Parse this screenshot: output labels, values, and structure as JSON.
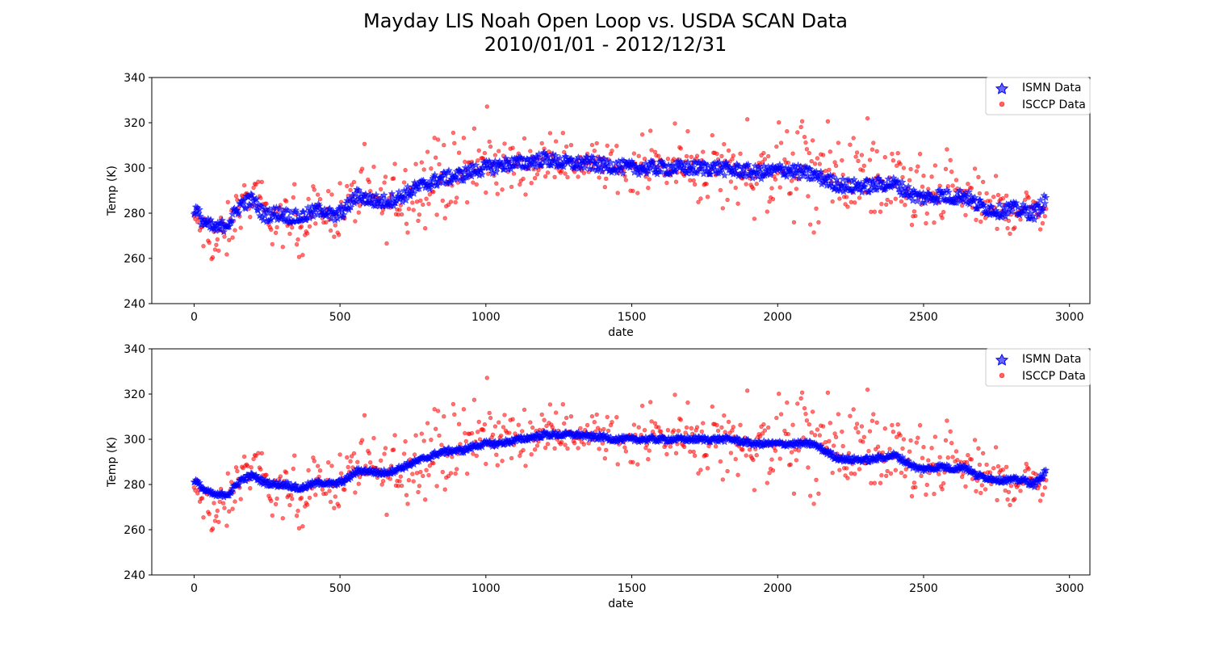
{
  "figure": {
    "title_line1": "Mayday LIS Noah Open Loop vs. USDA SCAN Data",
    "title_line2": "2010/01/01 - 2012/12/31"
  },
  "colors": {
    "ismn": "#0000ff",
    "isccp": "#ff0000"
  },
  "chart_data": [
    {
      "type": "scatter",
      "title": "",
      "xlabel": "date",
      "ylabel": "Temp (K)",
      "xlim": [
        -145,
        3070
      ],
      "ylim": [
        240,
        340
      ],
      "xticks": [
        0,
        500,
        1000,
        1500,
        2000,
        2500,
        3000
      ],
      "yticks": [
        240,
        260,
        280,
        300,
        320,
        340
      ],
      "grid": false,
      "legend": {
        "position": "top-right",
        "entries": [
          "ISMN Data",
          "ISCCP Data"
        ]
      },
      "series": [
        {
          "name": "ISMN Data",
          "marker": "star",
          "color": "#0000ff",
          "x": [
            0,
            40,
            80,
            120,
            160,
            200,
            240,
            280,
            320,
            360,
            400,
            440,
            480,
            520,
            560,
            600,
            640,
            680,
            720,
            760,
            800,
            840,
            880,
            920,
            960,
            1000,
            1040,
            1080,
            1120,
            1160,
            1200,
            1240,
            1280,
            1320,
            1360,
            1400,
            1440,
            1480,
            1520,
            1560,
            1600,
            1640,
            1680,
            1720,
            1760,
            1800,
            1840,
            1880,
            1920,
            1960,
            2000,
            2040,
            2080,
            2120,
            2160,
            2200,
            2240,
            2280,
            2320,
            2360,
            2400,
            2440,
            2480,
            2520,
            2560,
            2600,
            2640,
            2680,
            2720,
            2760,
            2800,
            2840,
            2880,
            2920
          ],
          "y": [
            282,
            275,
            273,
            276,
            284,
            286,
            279,
            280,
            279,
            278,
            280,
            282,
            278,
            282,
            288,
            286,
            285,
            286,
            288,
            291,
            293,
            295,
            296,
            297,
            299,
            300,
            301,
            302,
            302,
            303,
            304,
            303,
            302,
            302,
            302,
            301,
            301,
            300,
            300,
            300,
            300,
            300,
            300,
            300,
            300,
            300,
            299,
            299,
            298,
            298,
            299,
            299,
            298,
            297,
            295,
            293,
            292,
            292,
            292,
            293,
            293,
            290,
            287,
            287,
            288,
            287,
            288,
            284,
            282,
            281,
            282,
            281,
            280,
            286
          ]
        },
        {
          "name": "ISCCP Data",
          "marker": "circle",
          "color": "#ff0000",
          "x": [
            0,
            40,
            80,
            120,
            160,
            200,
            240,
            280,
            320,
            360,
            400,
            440,
            480,
            520,
            560,
            600,
            640,
            680,
            720,
            760,
            800,
            840,
            880,
            920,
            960,
            1000,
            1040,
            1080,
            1120,
            1160,
            1200,
            1240,
            1280,
            1320,
            1360,
            1400,
            1440,
            1480,
            1520,
            1560,
            1600,
            1640,
            1680,
            1720,
            1760,
            1800,
            1840,
            1880,
            1920,
            1960,
            2000,
            2040,
            2080,
            2120,
            2160,
            2200,
            2240,
            2280,
            2320,
            2360,
            2400,
            2440,
            2480,
            2520,
            2560,
            2600,
            2640,
            2680,
            2720,
            2760,
            2800,
            2840,
            2880,
            2920
          ],
          "y": [
            278,
            270,
            266,
            272,
            285,
            286,
            280,
            277,
            275,
            274,
            278,
            281,
            281,
            283,
            288,
            287,
            285,
            285,
            289,
            292,
            294,
            295,
            295,
            297,
            299,
            302,
            301,
            301,
            301,
            302,
            303,
            303,
            302,
            302,
            303,
            301,
            300,
            300,
            300,
            301,
            301,
            301,
            300,
            300,
            299,
            299,
            298,
            299,
            297,
            296,
            298,
            298,
            298,
            297,
            295,
            294,
            296,
            296,
            296,
            292,
            292,
            290,
            286,
            285,
            286,
            287,
            288,
            285,
            283,
            281,
            281,
            282,
            281,
            283
          ],
          "spread": [
            4,
            6,
            8,
            7,
            6,
            5,
            6,
            7,
            7,
            7,
            7,
            6,
            7,
            7,
            8,
            8,
            9,
            9,
            10,
            10,
            11,
            11,
            10,
            9,
            9,
            9,
            8,
            7,
            6,
            6,
            5,
            5,
            5,
            5,
            5,
            6,
            6,
            5,
            6,
            6,
            6,
            7,
            7,
            8,
            9,
            10,
            11,
            11,
            11,
            12,
            12,
            12,
            12,
            12,
            11,
            11,
            11,
            11,
            11,
            10,
            9,
            8,
            8,
            8,
            8,
            7,
            7,
            7,
            6,
            6,
            6,
            6,
            5,
            5
          ]
        }
      ]
    },
    {
      "type": "scatter",
      "title": "",
      "xlabel": "date",
      "ylabel": "Temp (K)",
      "xlim": [
        -145,
        3070
      ],
      "ylim": [
        240,
        340
      ],
      "xticks": [
        0,
        500,
        1000,
        1500,
        2000,
        2500,
        3000
      ],
      "yticks": [
        240,
        260,
        280,
        300,
        320,
        340
      ],
      "grid": false,
      "legend": {
        "position": "top-right",
        "entries": [
          "ISMN Data",
          "ISCCP Data"
        ]
      },
      "series": [
        {
          "name": "ISMN Data",
          "marker": "star",
          "color": "#0000ff",
          "x": [
            0,
            40,
            80,
            120,
            160,
            200,
            240,
            280,
            320,
            360,
            400,
            440,
            480,
            520,
            560,
            600,
            640,
            680,
            720,
            760,
            800,
            840,
            880,
            920,
            960,
            1000,
            1040,
            1080,
            1120,
            1160,
            1200,
            1240,
            1280,
            1320,
            1360,
            1400,
            1440,
            1480,
            1520,
            1560,
            1600,
            1640,
            1680,
            1720,
            1760,
            1800,
            1840,
            1880,
            1920,
            1960,
            2000,
            2040,
            2080,
            2120,
            2160,
            2200,
            2240,
            2280,
            2320,
            2360,
            2400,
            2440,
            2480,
            2520,
            2560,
            2600,
            2640,
            2680,
            2720,
            2760,
            2800,
            2840,
            2880,
            2920
          ],
          "y": [
            282,
            277,
            275,
            276,
            282,
            284,
            281,
            280,
            280,
            278,
            280,
            281,
            280,
            282,
            286,
            286,
            285,
            286,
            288,
            290,
            292,
            294,
            295,
            295,
            297,
            298,
            298,
            299,
            300,
            301,
            302,
            302,
            302,
            302,
            301,
            301,
            300,
            300,
            300,
            300,
            300,
            300,
            300,
            300,
            300,
            300,
            300,
            299,
            298,
            298,
            298,
            298,
            298,
            298,
            295,
            292,
            291,
            291,
            291,
            292,
            293,
            290,
            287,
            287,
            288,
            287,
            288,
            284,
            283,
            282,
            282,
            282,
            280,
            286
          ]
        },
        {
          "name": "ISCCP Data",
          "marker": "circle",
          "color": "#ff0000",
          "x": [
            0,
            40,
            80,
            120,
            160,
            200,
            240,
            280,
            320,
            360,
            400,
            440,
            480,
            520,
            560,
            600,
            640,
            680,
            720,
            760,
            800,
            840,
            880,
            920,
            960,
            1000,
            1040,
            1080,
            1120,
            1160,
            1200,
            1240,
            1280,
            1320,
            1360,
            1400,
            1440,
            1480,
            1520,
            1560,
            1600,
            1640,
            1680,
            1720,
            1760,
            1800,
            1840,
            1880,
            1920,
            1960,
            2000,
            2040,
            2080,
            2120,
            2160,
            2200,
            2240,
            2280,
            2320,
            2360,
            2400,
            2440,
            2480,
            2520,
            2560,
            2600,
            2640,
            2680,
            2720,
            2760,
            2800,
            2840,
            2880,
            2920
          ],
          "y": [
            278,
            270,
            266,
            272,
            285,
            286,
            280,
            277,
            275,
            274,
            278,
            281,
            281,
            283,
            288,
            287,
            285,
            285,
            289,
            292,
            294,
            295,
            295,
            297,
            299,
            302,
            301,
            301,
            301,
            302,
            303,
            303,
            302,
            302,
            303,
            301,
            300,
            300,
            300,
            301,
            301,
            301,
            300,
            300,
            299,
            299,
            298,
            299,
            297,
            296,
            298,
            298,
            298,
            297,
            295,
            294,
            296,
            296,
            296,
            292,
            292,
            290,
            286,
            285,
            286,
            287,
            288,
            285,
            283,
            281,
            281,
            282,
            281,
            283
          ],
          "spread": [
            4,
            6,
            8,
            7,
            6,
            5,
            6,
            7,
            7,
            7,
            7,
            6,
            7,
            7,
            8,
            8,
            9,
            9,
            10,
            10,
            11,
            11,
            10,
            9,
            9,
            9,
            8,
            7,
            6,
            6,
            5,
            5,
            5,
            5,
            5,
            6,
            6,
            5,
            6,
            6,
            6,
            7,
            7,
            8,
            9,
            10,
            11,
            11,
            11,
            12,
            12,
            12,
            12,
            12,
            11,
            11,
            11,
            11,
            11,
            10,
            9,
            8,
            8,
            8,
            8,
            7,
            7,
            7,
            6,
            6,
            6,
            6,
            5,
            5
          ]
        }
      ]
    }
  ]
}
